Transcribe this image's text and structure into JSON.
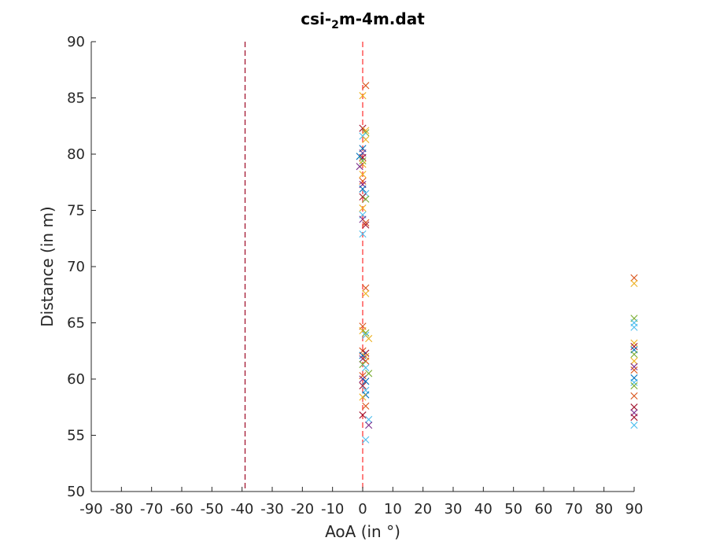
{
  "chart_data": {
    "type": "scatter",
    "title_prefix": "csi-",
    "title_sub": "2",
    "title_suffix": "m-4m.dat",
    "xlabel": "AoA (in °)",
    "ylabel": "Distance (in m)",
    "xlim": [
      -90,
      90
    ],
    "ylim": [
      50,
      90
    ],
    "xticks": [
      -90,
      -80,
      -70,
      -60,
      -50,
      -40,
      -30,
      -20,
      -10,
      0,
      10,
      20,
      30,
      40,
      50,
      60,
      70,
      80,
      90
    ],
    "yticks": [
      50,
      55,
      60,
      65,
      70,
      75,
      80,
      85,
      90
    ],
    "grid": false,
    "marker": "x",
    "reference_lines": [
      {
        "x": -39,
        "color": "#A2142F",
        "style": "dashed"
      },
      {
        "x": 0,
        "color": "#FF3B3B",
        "style": "dashed"
      }
    ],
    "colors": {
      "blue": "#0072BD",
      "orange": "#D95319",
      "yellow": "#EDB120",
      "purple": "#7E2F8E",
      "green": "#77AC30",
      "cyan": "#4DBEEE",
      "red": "#A2142F"
    },
    "points": [
      {
        "x": 1,
        "y": 86.1,
        "c": "orange"
      },
      {
        "x": 0,
        "y": 85.2,
        "c": "yellow"
      },
      {
        "x": 0,
        "y": 82.3,
        "c": "red"
      },
      {
        "x": 1,
        "y": 82.1,
        "c": "yellow"
      },
      {
        "x": 1,
        "y": 81.9,
        "c": "green"
      },
      {
        "x": 0,
        "y": 81.6,
        "c": "cyan"
      },
      {
        "x": 1,
        "y": 81.3,
        "c": "yellow"
      },
      {
        "x": 0,
        "y": 80.5,
        "c": "blue"
      },
      {
        "x": 0,
        "y": 80.1,
        "c": "purple"
      },
      {
        "x": -1,
        "y": 79.8,
        "c": "blue"
      },
      {
        "x": 0,
        "y": 79.7,
        "c": "red"
      },
      {
        "x": 0,
        "y": 79.4,
        "c": "green"
      },
      {
        "x": 0,
        "y": 79.1,
        "c": "yellow"
      },
      {
        "x": -1,
        "y": 78.9,
        "c": "purple"
      },
      {
        "x": 0,
        "y": 78.2,
        "c": "yellow"
      },
      {
        "x": 0,
        "y": 77.6,
        "c": "orange"
      },
      {
        "x": 0,
        "y": 77.3,
        "c": "purple"
      },
      {
        "x": 0,
        "y": 76.9,
        "c": "blue"
      },
      {
        "x": 1,
        "y": 76.5,
        "c": "cyan"
      },
      {
        "x": 0,
        "y": 76.2,
        "c": "red"
      },
      {
        "x": 1,
        "y": 76.0,
        "c": "green"
      },
      {
        "x": 0,
        "y": 75.2,
        "c": "yellow"
      },
      {
        "x": 0,
        "y": 74.6,
        "c": "cyan"
      },
      {
        "x": 0,
        "y": 74.2,
        "c": "purple"
      },
      {
        "x": 1,
        "y": 73.9,
        "c": "orange"
      },
      {
        "x": 1,
        "y": 73.7,
        "c": "red"
      },
      {
        "x": 0,
        "y": 72.9,
        "c": "cyan"
      },
      {
        "x": 1,
        "y": 68.1,
        "c": "orange"
      },
      {
        "x": 1,
        "y": 67.6,
        "c": "yellow"
      },
      {
        "x": 0,
        "y": 64.7,
        "c": "orange"
      },
      {
        "x": 0,
        "y": 64.3,
        "c": "yellow"
      },
      {
        "x": 1,
        "y": 64.1,
        "c": "green"
      },
      {
        "x": 1,
        "y": 63.9,
        "c": "cyan"
      },
      {
        "x": 2,
        "y": 63.6,
        "c": "yellow"
      },
      {
        "x": 0,
        "y": 62.5,
        "c": "orange"
      },
      {
        "x": 1,
        "y": 62.3,
        "c": "red"
      },
      {
        "x": 0,
        "y": 62.1,
        "c": "blue"
      },
      {
        "x": 1,
        "y": 62.0,
        "c": "yellow"
      },
      {
        "x": 0,
        "y": 61.8,
        "c": "purple"
      },
      {
        "x": 1,
        "y": 61.6,
        "c": "orange"
      },
      {
        "x": 0,
        "y": 61.3,
        "c": "green"
      },
      {
        "x": 1,
        "y": 61.0,
        "c": "cyan"
      },
      {
        "x": 2,
        "y": 60.5,
        "c": "green"
      },
      {
        "x": 0,
        "y": 60.3,
        "c": "orange"
      },
      {
        "x": 0,
        "y": 60.0,
        "c": "purple"
      },
      {
        "x": 1,
        "y": 59.8,
        "c": "blue"
      },
      {
        "x": 0,
        "y": 59.4,
        "c": "red"
      },
      {
        "x": 1,
        "y": 59.0,
        "c": "cyan"
      },
      {
        "x": 1,
        "y": 58.6,
        "c": "blue"
      },
      {
        "x": 0,
        "y": 58.4,
        "c": "yellow"
      },
      {
        "x": 1,
        "y": 57.6,
        "c": "orange"
      },
      {
        "x": 0,
        "y": 56.8,
        "c": "red"
      },
      {
        "x": 2,
        "y": 56.4,
        "c": "cyan"
      },
      {
        "x": 2,
        "y": 55.9,
        "c": "purple"
      },
      {
        "x": 1,
        "y": 54.6,
        "c": "cyan"
      },
      {
        "x": 90,
        "y": 69.0,
        "c": "orange"
      },
      {
        "x": 90,
        "y": 68.5,
        "c": "yellow"
      },
      {
        "x": 90,
        "y": 65.4,
        "c": "green"
      },
      {
        "x": 90,
        "y": 65.0,
        "c": "cyan"
      },
      {
        "x": 90,
        "y": 64.6,
        "c": "cyan"
      },
      {
        "x": 90,
        "y": 63.2,
        "c": "yellow"
      },
      {
        "x": 90,
        "y": 62.9,
        "c": "red"
      },
      {
        "x": 90,
        "y": 62.6,
        "c": "blue"
      },
      {
        "x": 90,
        "y": 62.2,
        "c": "green"
      },
      {
        "x": 90,
        "y": 61.6,
        "c": "yellow"
      },
      {
        "x": 90,
        "y": 61.1,
        "c": "purple"
      },
      {
        "x": 90,
        "y": 60.8,
        "c": "orange"
      },
      {
        "x": 90,
        "y": 60.1,
        "c": "blue"
      },
      {
        "x": 90,
        "y": 59.7,
        "c": "cyan"
      },
      {
        "x": 90,
        "y": 59.4,
        "c": "green"
      },
      {
        "x": 90,
        "y": 58.5,
        "c": "orange"
      },
      {
        "x": 90,
        "y": 57.5,
        "c": "red"
      },
      {
        "x": 90,
        "y": 57.0,
        "c": "purple"
      },
      {
        "x": 90,
        "y": 56.6,
        "c": "red"
      },
      {
        "x": 90,
        "y": 55.9,
        "c": "cyan"
      }
    ]
  }
}
